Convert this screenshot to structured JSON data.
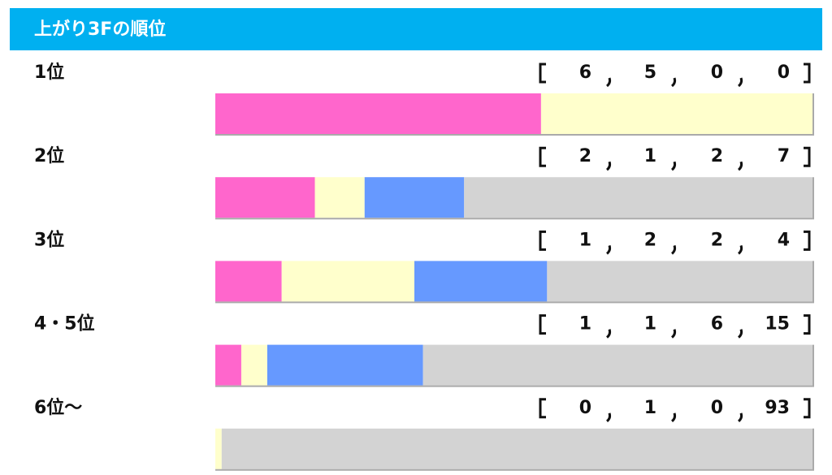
{
  "chart_data": {
    "type": "bar",
    "stacked": "percent",
    "title": "上がり3Fの順位",
    "categories": [
      "1位",
      "2位",
      "3位",
      "4・5位",
      "6位～"
    ],
    "series": [
      {
        "color": "#ff66cc",
        "values": [
          6,
          2,
          1,
          1,
          0
        ]
      },
      {
        "color": "#ffffcc",
        "values": [
          5,
          1,
          2,
          1,
          1
        ]
      },
      {
        "color": "#6699ff",
        "values": [
          0,
          2,
          2,
          6,
          0
        ]
      },
      {
        "color": "#d3d3d3",
        "values": [
          0,
          7,
          4,
          15,
          93
        ]
      }
    ]
  }
}
